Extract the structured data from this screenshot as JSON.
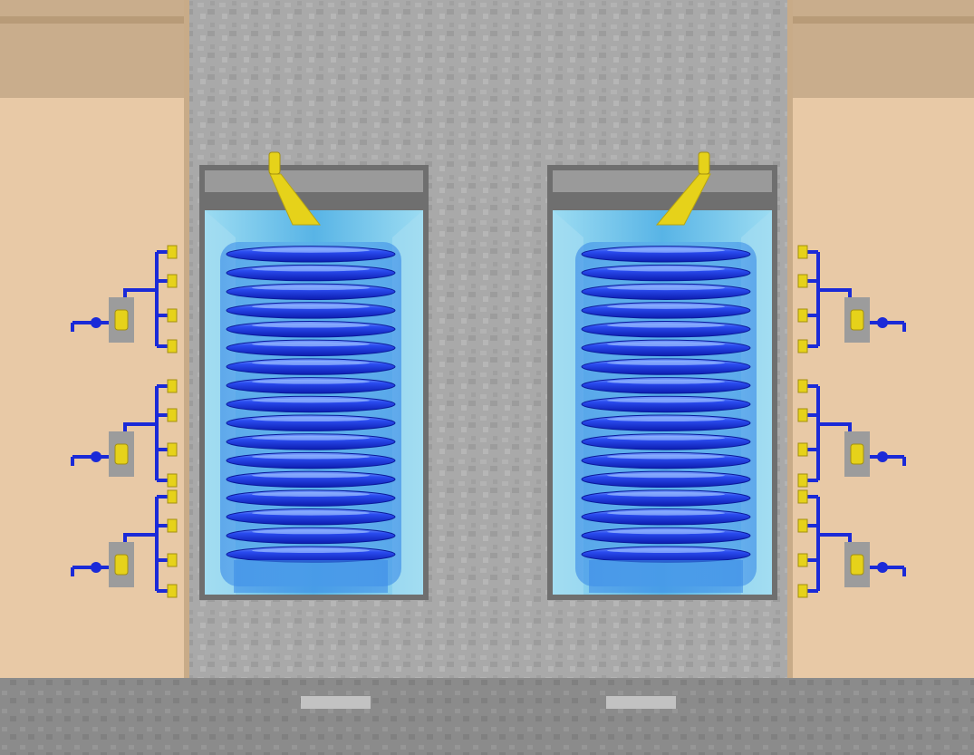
{
  "scene": {
    "colors": {
      "wall_tan": "#e9c9a6",
      "wall_tan_dark": "#c8a883",
      "wall_band": "#bda585",
      "concrete": "#a7a7a7",
      "concrete_dark": "#8d8d8d",
      "floor": "#8a8a8a",
      "water": "#7fcdea",
      "water_deep": "#4aa8df",
      "coil_blue": "#1f3fe0",
      "coil_dark": "#0a1fb8",
      "coil_highlight": "#8fb2ff",
      "pipe_blue": "#1a2ad8",
      "valve_yellow": "#e6d21a",
      "valve_gray": "#9c9c9c"
    },
    "tanks": [
      {
        "name": "left-tank",
        "coil_turns": 17,
        "side": "left"
      },
      {
        "name": "right-tank",
        "coil_turns": 17,
        "side": "right"
      }
    ],
    "valve_groups": [
      {
        "side": "left",
        "count": 3
      },
      {
        "side": "right",
        "count": 3
      }
    ]
  }
}
